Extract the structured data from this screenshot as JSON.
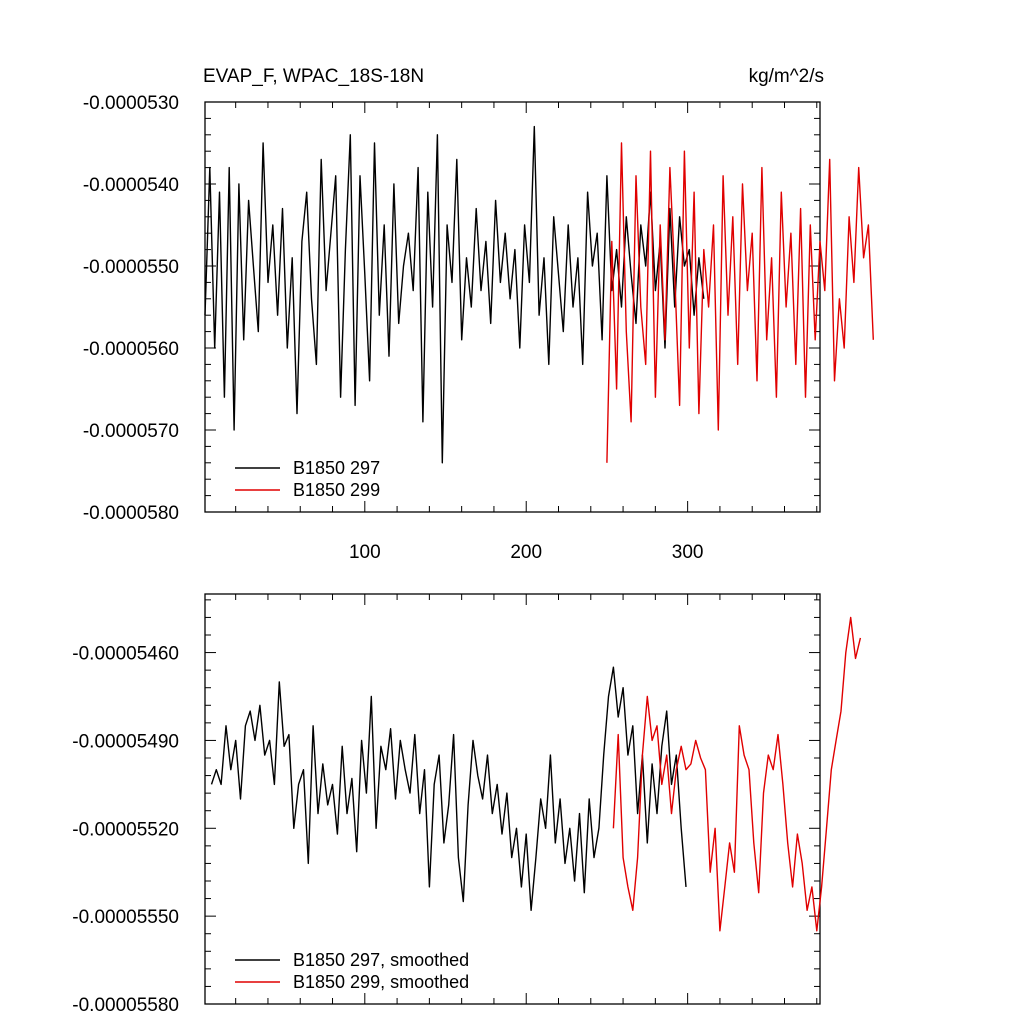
{
  "header": {
    "title_left": "EVAP_F, WPAC_18S-18N",
    "title_right": "kg/m^2/s"
  },
  "chart_data": [
    {
      "type": "line",
      "title": "EVAP_F, WPAC_18S-18N",
      "units": "kg/m^2/s",
      "xlim": [
        1,
        382
      ],
      "ylim": [
        -5.8e-05,
        -5.3e-05
      ],
      "xticks": [
        100,
        200,
        300
      ],
      "yticks": [
        -5.8e-05,
        -5.7e-05,
        -5.6e-05,
        -5.5e-05,
        -5.4e-05,
        -5.3e-05
      ],
      "xtick_labels": [
        "100",
        "200",
        "300"
      ],
      "ytick_labels": [
        "-0.0000580",
        "-0.0000570",
        "-0.0000560",
        "-0.0000550",
        "-0.0000540",
        "-0.0000530"
      ],
      "legend_position": "bottom-left",
      "series": [
        {
          "name": "B1850 297",
          "color": "#000000",
          "x_start": 1,
          "x_step": 3,
          "values": [
            -5.56e-05,
            -5.38e-05,
            -5.6e-05,
            -5.41e-05,
            -5.66e-05,
            -5.38e-05,
            -5.7e-05,
            -5.4e-05,
            -5.59e-05,
            -5.42e-05,
            -5.5e-05,
            -5.58e-05,
            -5.35e-05,
            -5.52e-05,
            -5.45e-05,
            -5.56e-05,
            -5.43e-05,
            -5.6e-05,
            -5.49e-05,
            -5.68e-05,
            -5.47e-05,
            -5.41e-05,
            -5.54e-05,
            -5.62e-05,
            -5.37e-05,
            -5.53e-05,
            -5.46e-05,
            -5.39e-05,
            -5.66e-05,
            -5.48e-05,
            -5.34e-05,
            -5.67e-05,
            -5.39e-05,
            -5.51e-05,
            -5.64e-05,
            -5.35e-05,
            -5.56e-05,
            -5.45e-05,
            -5.61e-05,
            -5.4e-05,
            -5.57e-05,
            -5.5e-05,
            -5.46e-05,
            -5.53e-05,
            -5.38e-05,
            -5.69e-05,
            -5.41e-05,
            -5.55e-05,
            -5.34e-05,
            -5.74e-05,
            -5.45e-05,
            -5.52e-05,
            -5.37e-05,
            -5.59e-05,
            -5.49e-05,
            -5.55e-05,
            -5.43e-05,
            -5.53e-05,
            -5.47e-05,
            -5.57e-05,
            -5.42e-05,
            -5.52e-05,
            -5.46e-05,
            -5.54e-05,
            -5.48e-05,
            -5.6e-05,
            -5.45e-05,
            -5.52e-05,
            -5.33e-05,
            -5.56e-05,
            -5.49e-05,
            -5.62e-05,
            -5.44e-05,
            -5.51e-05,
            -5.58e-05,
            -5.45e-05,
            -5.55e-05,
            -5.49e-05,
            -5.62e-05,
            -5.41e-05,
            -5.5e-05,
            -5.46e-05,
            -5.59e-05,
            -5.39e-05,
            -5.53e-05,
            -5.48e-05,
            -5.55e-05,
            -5.44e-05,
            -5.51e-05,
            -5.57e-05,
            -5.45e-05,
            -5.5e-05,
            -5.41e-05,
            -5.53e-05,
            -5.47e-05,
            -5.6e-05,
            -5.43e-05,
            -5.55e-05,
            -5.44e-05,
            -5.5e-05,
            -5.48e-05,
            -5.56e-05,
            -5.49e-05,
            -5.54e-05
          ]
        },
        {
          "name": "B1850 299",
          "color": "#e00000",
          "x_start": 250,
          "x_step": 3,
          "values": [
            -5.74e-05,
            -5.47e-05,
            -5.65e-05,
            -5.35e-05,
            -5.58e-05,
            -5.69e-05,
            -5.39e-05,
            -5.55e-05,
            -5.62e-05,
            -5.36e-05,
            -5.66e-05,
            -5.45e-05,
            -5.59e-05,
            -5.38e-05,
            -5.51e-05,
            -5.67e-05,
            -5.36e-05,
            -5.6e-05,
            -5.41e-05,
            -5.68e-05,
            -5.48e-05,
            -5.55e-05,
            -5.45e-05,
            -5.7e-05,
            -5.39e-05,
            -5.56e-05,
            -5.44e-05,
            -5.62e-05,
            -5.4e-05,
            -5.53e-05,
            -5.46e-05,
            -5.64e-05,
            -5.38e-05,
            -5.59e-05,
            -5.49e-05,
            -5.66e-05,
            -5.41e-05,
            -5.55e-05,
            -5.46e-05,
            -5.62e-05,
            -5.43e-05,
            -5.66e-05,
            -5.45e-05,
            -5.59e-05,
            -5.47e-05,
            -5.53e-05,
            -5.37e-05,
            -5.64e-05,
            -5.54e-05,
            -5.6e-05,
            -5.44e-05,
            -5.52e-05,
            -5.38e-05,
            -5.49e-05,
            -5.45e-05,
            -5.59e-05
          ]
        }
      ]
    },
    {
      "type": "line",
      "xlim": [
        1,
        382
      ],
      "ylim": [
        -5.58e-05,
        -5.44e-05
      ],
      "xticks": [
        100,
        200,
        300
      ],
      "yticks": [
        -5.58e-05,
        -5.55e-05,
        -5.52e-05,
        -5.49e-05,
        -5.46e-05
      ],
      "ytick_labels": [
        "-0.00005580",
        "-0.00005550",
        "-0.00005520",
        "-0.00005490",
        "-0.00005460"
      ],
      "legend_position": "bottom-left",
      "series": [
        {
          "name": "B1850 297, smoothed",
          "color": "#000000",
          "x_start": 5,
          "x_step": 3,
          "values": [
            -5.505e-05,
            -5.5e-05,
            -5.505e-05,
            -5.485e-05,
            -5.5e-05,
            -5.49e-05,
            -5.51e-05,
            -5.485e-05,
            -5.48e-05,
            -5.49e-05,
            -5.478e-05,
            -5.495e-05,
            -5.49e-05,
            -5.505e-05,
            -5.47e-05,
            -5.492e-05,
            -5.488e-05,
            -5.52e-05,
            -5.505e-05,
            -5.5e-05,
            -5.532e-05,
            -5.485e-05,
            -5.515e-05,
            -5.498e-05,
            -5.512e-05,
            -5.505e-05,
            -5.522e-05,
            -5.492e-05,
            -5.515e-05,
            -5.503e-05,
            -5.528e-05,
            -5.49e-05,
            -5.508e-05,
            -5.475e-05,
            -5.52e-05,
            -5.492e-05,
            -5.5e-05,
            -5.486e-05,
            -5.51e-05,
            -5.49e-05,
            -5.5e-05,
            -5.508e-05,
            -5.488e-05,
            -5.515e-05,
            -5.5e-05,
            -5.54e-05,
            -5.505e-05,
            -5.495e-05,
            -5.525e-05,
            -5.512e-05,
            -5.488e-05,
            -5.53e-05,
            -5.545e-05,
            -5.512e-05,
            -5.49e-05,
            -5.502e-05,
            -5.51e-05,
            -5.495e-05,
            -5.515e-05,
            -5.505e-05,
            -5.522e-05,
            -5.508e-05,
            -5.53e-05,
            -5.52e-05,
            -5.54e-05,
            -5.522e-05,
            -5.548e-05,
            -5.53e-05,
            -5.51e-05,
            -5.52e-05,
            -5.495e-05,
            -5.525e-05,
            -5.51e-05,
            -5.532e-05,
            -5.52e-05,
            -5.538e-05,
            -5.515e-05,
            -5.542e-05,
            -5.51e-05,
            -5.53e-05,
            -5.52e-05,
            -5.495e-05,
            -5.475e-05,
            -5.465e-05,
            -5.482e-05,
            -5.472e-05,
            -5.495e-05,
            -5.485e-05,
            -5.515e-05,
            -5.495e-05,
            -5.525e-05,
            -5.498e-05,
            -5.515e-05,
            -5.492e-05,
            -5.48e-05,
            -5.505e-05,
            -5.495e-05,
            -5.52e-05,
            -5.54e-05
          ]
        },
        {
          "name": "B1850 299, smoothed",
          "color": "#e00000",
          "x_start": 254,
          "x_step": 3,
          "values": [
            -5.52e-05,
            -5.488e-05,
            -5.53e-05,
            -5.54e-05,
            -5.548e-05,
            -5.53e-05,
            -5.495e-05,
            -5.475e-05,
            -5.49e-05,
            -5.485e-05,
            -5.505e-05,
            -5.495e-05,
            -5.515e-05,
            -5.5e-05,
            -5.492e-05,
            -5.5e-05,
            -5.498e-05,
            -5.49e-05,
            -5.496e-05,
            -5.5e-05,
            -5.535e-05,
            -5.52e-05,
            -5.555e-05,
            -5.54e-05,
            -5.525e-05,
            -5.535e-05,
            -5.485e-05,
            -5.495e-05,
            -5.5e-05,
            -5.525e-05,
            -5.542e-05,
            -5.508e-05,
            -5.495e-05,
            -5.5e-05,
            -5.488e-05,
            -5.505e-05,
            -5.525e-05,
            -5.54e-05,
            -5.522e-05,
            -5.532e-05,
            -5.548e-05,
            -5.54e-05,
            -5.555e-05,
            -5.54e-05,
            -5.52e-05,
            -5.5e-05,
            -5.49e-05,
            -5.48e-05,
            -5.46e-05,
            -5.448e-05,
            -5.462e-05,
            -5.455e-05
          ]
        }
      ]
    }
  ]
}
